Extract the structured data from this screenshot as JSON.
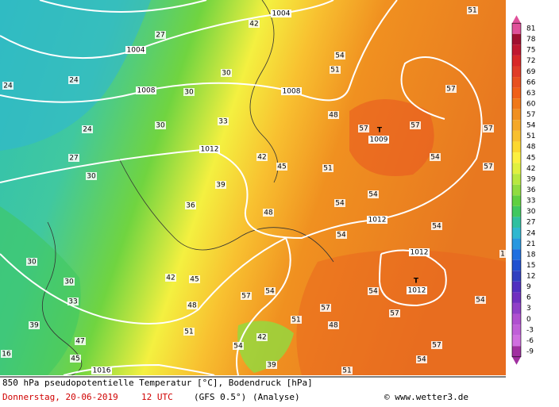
{
  "map": {
    "labels": [
      "1004",
      "1004",
      "1008",
      "1008",
      "1012",
      "1012",
      "1012",
      "1012",
      "1009",
      "1016",
      "T",
      "T",
      "27",
      "24",
      "24",
      "30",
      "30",
      "33",
      "24",
      "27",
      "30",
      "36",
      "39",
      "42",
      "45",
      "48",
      "51",
      "54",
      "54",
      "57",
      "57",
      "57",
      "57",
      "57",
      "54",
      "54",
      "54",
      "57",
      "54",
      "57",
      "48",
      "45",
      "42",
      "30",
      "30",
      "33",
      "39",
      "47",
      "45",
      "51",
      "54",
      "39",
      "42",
      "51",
      "57",
      "48",
      "54",
      "57",
      "51",
      "54",
      "54",
      "48",
      "54",
      "51",
      "42",
      "30",
      "51",
      "1",
      "16"
    ]
  },
  "colorbar": {
    "labels": [
      "81",
      "78",
      "75",
      "72",
      "69",
      "66",
      "63",
      "60",
      "57",
      "54",
      "51",
      "48",
      "45",
      "42",
      "39",
      "36",
      "33",
      "30",
      "27",
      "24",
      "21",
      "18",
      "15",
      "12",
      "9",
      "6",
      "3",
      "0",
      "-3",
      "-6",
      "-9"
    ],
    "colors": [
      "#e0509a",
      "#a01030",
      "#c01830",
      "#d82828",
      "#e03c28",
      "#e85020",
      "#f06018",
      "#f07818",
      "#f09020",
      "#f4a828",
      "#f8c030",
      "#fcd830",
      "#fcf040",
      "#e0f040",
      "#b8e840",
      "#90dc40",
      "#60d040",
      "#40c860",
      "#30c0a0",
      "#30b8d0",
      "#2898e0",
      "#2070e0",
      "#2050d0",
      "#3040c0",
      "#5030c0",
      "#7030c0",
      "#9040c8",
      "#b050d0",
      "#c060d8",
      "#d070e0",
      "#a030a0"
    ]
  },
  "footer": {
    "title": "850 hPa pseudopotentielle Temperatur [°C], Bodendruck [hPa]",
    "date": "Donnerstag, 20-06-2019",
    "time": "12 UTC",
    "model": "(GFS 0.5°)",
    "run": "(Analyse)",
    "credit": "© www.wetter3.de"
  }
}
